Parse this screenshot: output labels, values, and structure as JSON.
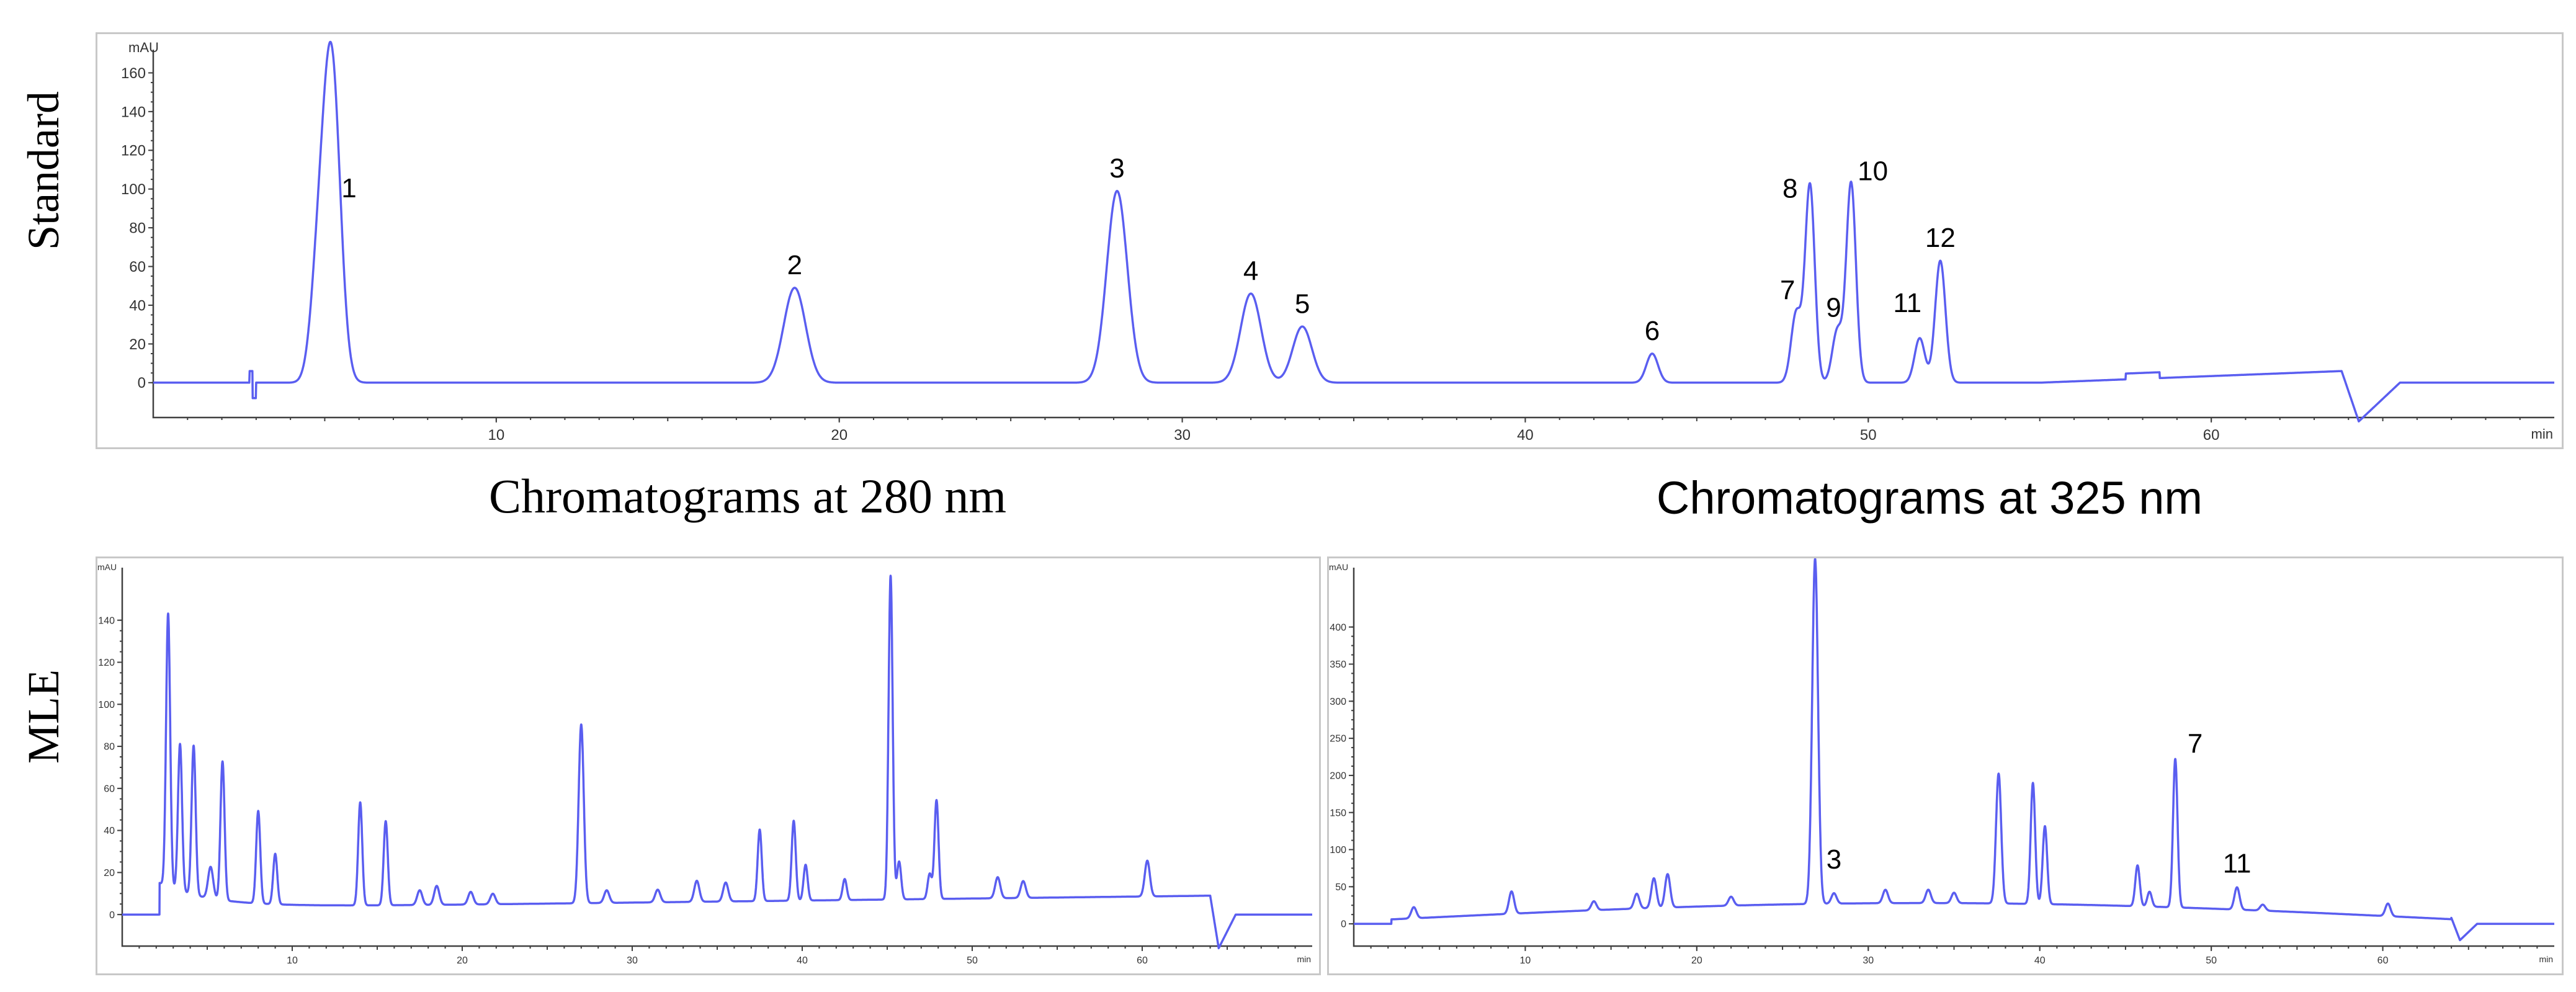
{
  "row_labels": {
    "top": "Standard",
    "bottom": "MLE"
  },
  "captions": {
    "left": "Chromatograms at 280 nm",
    "right": "Chromatograms at 325 nm"
  },
  "colors": {
    "trace": "#5a5ef0",
    "axis": "#404040",
    "frame": "#c8c8c8"
  },
  "chart_data": [
    {
      "id": "standard",
      "type": "line",
      "y_unit": "mAU",
      "x_unit": "min",
      "xlim": [
        0,
        70
      ],
      "ylim": [
        -18,
        172
      ],
      "x_ticks": [
        10,
        20,
        30,
        40,
        50,
        60
      ],
      "y_ticks": [
        0,
        20,
        40,
        60,
        80,
        100,
        120,
        140,
        160
      ],
      "peaks": [
        {
          "label": "1",
          "x": 5.2,
          "y": 165,
          "w": 0.25
        },
        {
          "label": "",
          "x": 4.8,
          "y": 50,
          "w": 0.22
        },
        {
          "label": "2",
          "x": 18.7,
          "y": 49,
          "w": 0.32
        },
        {
          "label": "3",
          "x": 28.1,
          "y": 99,
          "w": 0.3
        },
        {
          "label": "4",
          "x": 32.0,
          "y": 46,
          "w": 0.3
        },
        {
          "label": "5",
          "x": 33.5,
          "y": 29,
          "w": 0.28
        },
        {
          "label": "6",
          "x": 43.7,
          "y": 15,
          "w": 0.17
        },
        {
          "label": "7",
          "x": 47.9,
          "y": 36,
          "w": 0.15
        },
        {
          "label": "8",
          "x": 48.3,
          "y": 102,
          "w": 0.14
        },
        {
          "label": "9",
          "x": 49.1,
          "y": 27,
          "w": 0.15
        },
        {
          "label": "10",
          "x": 49.5,
          "y": 103,
          "w": 0.14
        },
        {
          "label": "11",
          "x": 51.5,
          "y": 23,
          "w": 0.15
        },
        {
          "label": "12",
          "x": 52.1,
          "y": 63,
          "w": 0.15
        }
      ]
    },
    {
      "id": "mle_280",
      "type": "line",
      "y_unit": "mAU",
      "x_unit": "min",
      "xlim": [
        0,
        70
      ],
      "ylim": [
        -15,
        165
      ],
      "x_ticks": [
        10,
        20,
        30,
        40,
        50,
        60
      ],
      "y_ticks": [
        0,
        20,
        40,
        60,
        80,
        100,
        120,
        140
      ],
      "peaks": [
        {
          "label": "",
          "x": 2.7,
          "y": 130,
          "w": 0.12
        },
        {
          "label": "",
          "x": 3.4,
          "y": 70,
          "w": 0.12
        },
        {
          "label": "",
          "x": 4.2,
          "y": 71,
          "w": 0.12
        },
        {
          "label": "",
          "x": 5.2,
          "y": 15,
          "w": 0.15
        },
        {
          "label": "",
          "x": 5.9,
          "y": 66,
          "w": 0.12
        },
        {
          "label": "",
          "x": 8.0,
          "y": 44,
          "w": 0.12
        },
        {
          "label": "",
          "x": 9.0,
          "y": 24,
          "w": 0.12
        },
        {
          "label": "",
          "x": 14.0,
          "y": 49,
          "w": 0.12
        },
        {
          "label": "",
          "x": 15.5,
          "y": 40,
          "w": 0.12
        },
        {
          "label": "",
          "x": 17.5,
          "y": 7,
          "w": 0.15
        },
        {
          "label": "",
          "x": 18.5,
          "y": 9,
          "w": 0.15
        },
        {
          "label": "",
          "x": 20.5,
          "y": 6,
          "w": 0.15
        },
        {
          "label": "",
          "x": 21.8,
          "y": 5,
          "w": 0.15
        },
        {
          "label": "",
          "x": 27.0,
          "y": 85,
          "w": 0.15
        },
        {
          "label": "",
          "x": 28.5,
          "y": 6,
          "w": 0.15
        },
        {
          "label": "",
          "x": 31.5,
          "y": 6,
          "w": 0.15
        },
        {
          "label": "",
          "x": 33.8,
          "y": 10,
          "w": 0.15
        },
        {
          "label": "",
          "x": 35.5,
          "y": 9,
          "w": 0.15
        },
        {
          "label": "",
          "x": 37.5,
          "y": 34,
          "w": 0.12
        },
        {
          "label": "",
          "x": 39.5,
          "y": 38,
          "w": 0.12
        },
        {
          "label": "",
          "x": 40.2,
          "y": 17,
          "w": 0.12
        },
        {
          "label": "",
          "x": 42.5,
          "y": 10,
          "w": 0.12
        },
        {
          "label": "",
          "x": 45.2,
          "y": 154,
          "w": 0.12
        },
        {
          "label": "",
          "x": 45.7,
          "y": 18,
          "w": 0.12
        },
        {
          "label": "",
          "x": 47.5,
          "y": 12,
          "w": 0.12
        },
        {
          "label": "",
          "x": 47.9,
          "y": 47,
          "w": 0.12
        },
        {
          "label": "",
          "x": 51.5,
          "y": 10,
          "w": 0.15
        },
        {
          "label": "",
          "x": 53.0,
          "y": 8,
          "w": 0.15
        },
        {
          "label": "",
          "x": 60.3,
          "y": 17,
          "w": 0.15
        }
      ]
    },
    {
      "id": "mle_325",
      "type": "line",
      "y_unit": "mAU",
      "x_unit": "min",
      "xlim": [
        0,
        70
      ],
      "ylim": [
        -30,
        480
      ],
      "x_ticks": [
        10,
        20,
        30,
        40,
        50,
        60
      ],
      "y_ticks": [
        0,
        50,
        100,
        150,
        200,
        250,
        300,
        350,
        400
      ],
      "peaks": [
        {
          "label": "",
          "x": 3.5,
          "y": 15,
          "w": 0.15
        },
        {
          "label": "",
          "x": 9.2,
          "y": 30,
          "w": 0.15
        },
        {
          "label": "",
          "x": 14.0,
          "y": 12,
          "w": 0.15
        },
        {
          "label": "",
          "x": 16.5,
          "y": 20,
          "w": 0.15
        },
        {
          "label": "",
          "x": 17.5,
          "y": 40,
          "w": 0.15
        },
        {
          "label": "",
          "x": 18.3,
          "y": 45,
          "w": 0.15
        },
        {
          "label": "",
          "x": 22.0,
          "y": 12,
          "w": 0.15
        },
        {
          "label": "",
          "x": 26.9,
          "y": 465,
          "w": 0.17
        },
        {
          "label": "3",
          "x": 28.0,
          "y": 14,
          "w": 0.15
        },
        {
          "label": "",
          "x": 31.0,
          "y": 18,
          "w": 0.15
        },
        {
          "label": "",
          "x": 33.5,
          "y": 18,
          "w": 0.15
        },
        {
          "label": "",
          "x": 35.0,
          "y": 14,
          "w": 0.15
        },
        {
          "label": "",
          "x": 37.6,
          "y": 175,
          "w": 0.15
        },
        {
          "label": "",
          "x": 39.6,
          "y": 163,
          "w": 0.13
        },
        {
          "label": "",
          "x": 40.3,
          "y": 105,
          "w": 0.13
        },
        {
          "label": "",
          "x": 45.7,
          "y": 55,
          "w": 0.13
        },
        {
          "label": "",
          "x": 46.4,
          "y": 20,
          "w": 0.13
        },
        {
          "label": "7",
          "x": 47.9,
          "y": 200,
          "w": 0.13
        },
        {
          "label": "11",
          "x": 51.5,
          "y": 30,
          "w": 0.15
        },
        {
          "label": "",
          "x": 53.0,
          "y": 8,
          "w": 0.15
        },
        {
          "label": "",
          "x": 60.3,
          "y": 17,
          "w": 0.15
        }
      ]
    }
  ]
}
